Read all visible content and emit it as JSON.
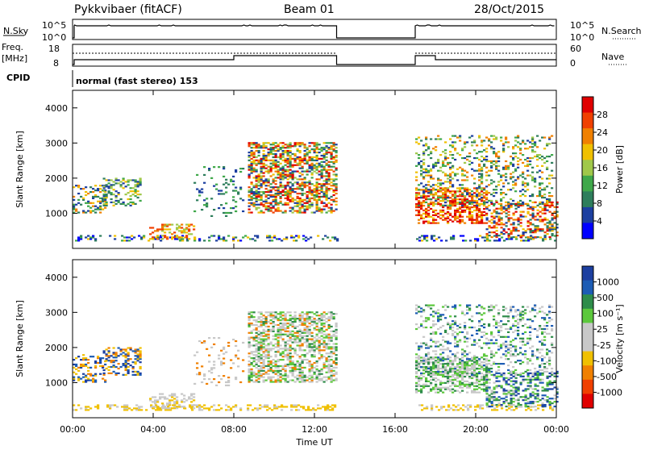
{
  "header": {
    "station": "Pykkvibaer (fitACF)",
    "beam": "Beam 01",
    "date": "28/Oct/2015"
  },
  "ancillary": {
    "nsky_label": "N.Sky",
    "nsky_ticks": [
      "10^5",
      "10^0"
    ],
    "nsearch_label": "N.Search",
    "nsearch_ticks": [
      "10^5",
      "10^0"
    ],
    "freq_label_1": "Freq.",
    "freq_label_2": "[MHz]",
    "freq_ticks": [
      "18",
      "8"
    ],
    "nave_label": "Nave",
    "nave_ticks": [
      "60",
      "0"
    ],
    "cpid_label": "CPID",
    "cpid_text": "normal (fast stereo) 153"
  },
  "colors": {
    "power_scale": [
      "#0000ff",
      "#1c3fa0",
      "#2e7e5c",
      "#3fa84a",
      "#a0c84a",
      "#f0c000",
      "#f08000",
      "#f04000",
      "#e00000"
    ],
    "velocity_scale": [
      "#e00000",
      "#f04000",
      "#f08000",
      "#f0c000",
      "#c8c8c8",
      "#c8c8c8",
      "#5cc83c",
      "#2e8c4a",
      "#1c5cb4",
      "#1c3fa0"
    ]
  },
  "chart_data": [
    {
      "type": "heatmap",
      "panel": "power",
      "ylabel": "Slant Range [km]",
      "yticks": [
        "1000",
        "2000",
        "3000",
        "4000"
      ],
      "xticks": [
        "00:00",
        "04:00",
        "08:00",
        "12:00",
        "16:00",
        "20:00",
        "00:00"
      ],
      "colorbar_label": "Power [dB]",
      "colorbar_ticks": [
        "4",
        "8",
        "12",
        "16",
        "20",
        "24",
        "28"
      ],
      "data_gaps_ut": [
        [
          13.1,
          17.0
        ]
      ]
    },
    {
      "type": "heatmap",
      "panel": "velocity",
      "ylabel": "Slant Range [km]",
      "yticks": [
        "1000",
        "2000",
        "3000",
        "4000"
      ],
      "xticks": [
        "00:00",
        "04:00",
        "08:00",
        "12:00",
        "16:00",
        "20:00",
        "00:00"
      ],
      "xlabel": "Time UT",
      "colorbar_label": "Velocity [m s⁻¹]",
      "colorbar_ticks": [
        "1000",
        "500",
        "100",
        "25",
        "-25",
        "-100",
        "-500",
        "-1000"
      ],
      "data_gaps_ut": [
        [
          13.1,
          17.0
        ]
      ]
    }
  ]
}
